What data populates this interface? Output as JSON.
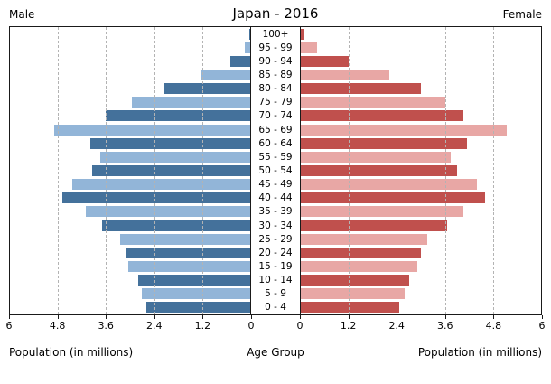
{
  "header": {
    "male": "Male",
    "title": "Japan - 2016",
    "female": "Female"
  },
  "captions": {
    "left": "Population (in millions)",
    "center": "Age Group",
    "right": "Population (in millions)"
  },
  "colors": {
    "male_dark": "#44719b",
    "male_light": "#92b5d8",
    "female_dark": "#c0504d",
    "female_light": "#e8a7a5",
    "gridline": "#b3b3b3",
    "axis": "#1a1a1a"
  },
  "chart_data": {
    "type": "bar",
    "subtype": "population-pyramid",
    "title": "Japan - 2016",
    "categories": [
      "100+",
      "95 - 99",
      "90 - 94",
      "85 - 89",
      "80 - 84",
      "75 - 79",
      "70 - 74",
      "65 - 69",
      "60 - 64",
      "55 - 59",
      "50 - 54",
      "45 - 49",
      "40 - 44",
      "35 - 39",
      "30 - 34",
      "25 - 29",
      "20 - 24",
      "15 - 19",
      "10 - 14",
      "5 - 9",
      "0 - 4"
    ],
    "series": [
      {
        "name": "Male",
        "values": [
          0.03,
          0.13,
          0.5,
          1.25,
          2.15,
          2.95,
          3.6,
          4.9,
          4.0,
          3.75,
          3.95,
          4.45,
          4.7,
          4.1,
          3.7,
          3.25,
          3.1,
          3.05,
          2.8,
          2.7,
          2.6
        ]
      },
      {
        "name": "Female",
        "values": [
          0.07,
          0.4,
          1.2,
          2.2,
          3.0,
          3.6,
          4.05,
          5.15,
          4.15,
          3.75,
          3.9,
          4.4,
          4.6,
          4.05,
          3.65,
          3.15,
          3.0,
          2.9,
          2.7,
          2.6,
          2.45
        ]
      }
    ],
    "xlim": [
      0,
      6
    ],
    "ticks": [
      0,
      1.2,
      2.4,
      3.6,
      4.8,
      6
    ],
    "xlabel": "Population (in millions)",
    "ylabel": "Age Group",
    "grid": "dashed-vertical",
    "legend": "none"
  }
}
